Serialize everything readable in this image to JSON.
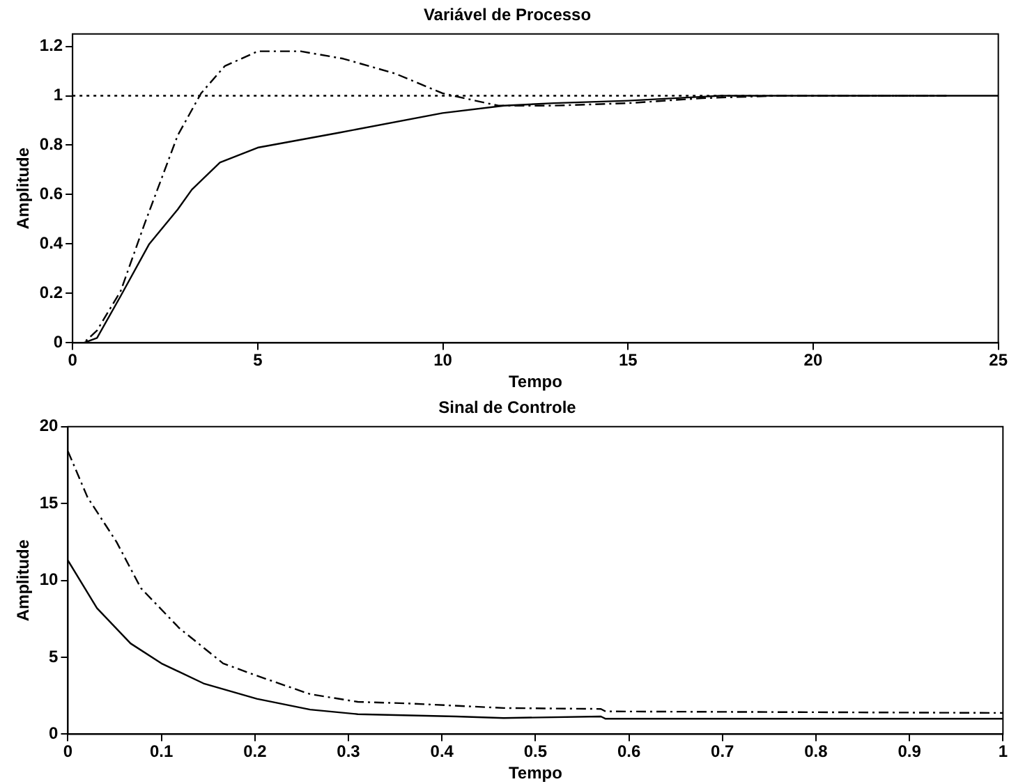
{
  "chart_data": [
    {
      "type": "line",
      "title": "Variável de Processo",
      "xlabel": "Tempo",
      "ylabel": "Amplitude",
      "xlim": [
        0,
        25
      ],
      "xticks": [
        0,
        5,
        10,
        15,
        20,
        25
      ],
      "ylim": [
        0,
        1.25
      ],
      "yticks": [
        0,
        0.2,
        0.4,
        0.6,
        0.8,
        1,
        1.2
      ],
      "grid": false,
      "legend": false,
      "marker": "none",
      "series": [
        {
          "color": "#000000",
          "line_style": "dotted",
          "x": [
            0,
            23.6
          ],
          "values": [
            1,
            1
          ]
        },
        {
          "color": "#000000",
          "line_style": "solid",
          "x": [
            0,
            0.3,
            0.66,
            1.3,
            2.07,
            2.84,
            3.22,
            3.98,
            5,
            7.18,
            9.99,
            11.65,
            13,
            15,
            17.5,
            20,
            25
          ],
          "values": [
            0,
            0,
            0.02,
            0.19,
            0.4,
            0.54,
            0.62,
            0.73,
            0.79,
            0.85,
            0.93,
            0.96,
            0.97,
            0.98,
            1,
            1,
            1
          ]
        },
        {
          "color": "#000000",
          "line_style": "dashdot",
          "x": [
            0,
            0.3,
            0.66,
            1.3,
            1.94,
            2.84,
            3.47,
            4.11,
            5,
            6.16,
            7.31,
            8.71,
            9.99,
            10.88,
            11.5,
            13,
            15,
            17,
            19,
            21,
            23.6
          ],
          "values": [
            0,
            0,
            0.05,
            0.21,
            0.48,
            0.84,
            1.01,
            1.12,
            1.18,
            1.18,
            1.15,
            1.09,
            1.01,
            0.98,
            0.96,
            0.96,
            0.97,
            0.99,
            1,
            1,
            1
          ]
        }
      ]
    },
    {
      "type": "line",
      "title": "Sinal de Controle",
      "xlabel": "Tempo",
      "ylabel": "Amplitude",
      "xlim": [
        0,
        1
      ],
      "xticks": [
        0,
        0.1,
        0.2,
        0.3,
        0.4,
        0.5,
        0.6,
        0.7,
        0.8,
        0.9,
        1
      ],
      "ylim": [
        0,
        20
      ],
      "yticks": [
        0,
        5,
        10,
        15,
        20
      ],
      "grid": false,
      "legend": false,
      "marker": "none",
      "series": [
        {
          "color": "#000000",
          "line_style": "solid",
          "x": [
            0,
            0.031,
            0.067,
            0.1,
            0.145,
            0.202,
            0.259,
            0.31,
            0.415,
            0.466,
            0.57,
            0.575,
            1
          ],
          "values": [
            11.3,
            8.2,
            5.9,
            4.6,
            3.3,
            2.3,
            1.6,
            1.3,
            1.15,
            1.05,
            1.15,
            1,
            1
          ]
        },
        {
          "color": "#000000",
          "line_style": "dashdot",
          "x": [
            0,
            0.021,
            0.052,
            0.078,
            0.119,
            0.166,
            0.202,
            0.259,
            0.31,
            0.363,
            0.466,
            0.57,
            0.575,
            1
          ],
          "values": [
            18.4,
            15.4,
            12.5,
            9.5,
            6.9,
            4.6,
            3.8,
            2.6,
            2.1,
            2,
            1.7,
            1.64,
            1.48,
            1.38
          ]
        }
      ]
    }
  ]
}
